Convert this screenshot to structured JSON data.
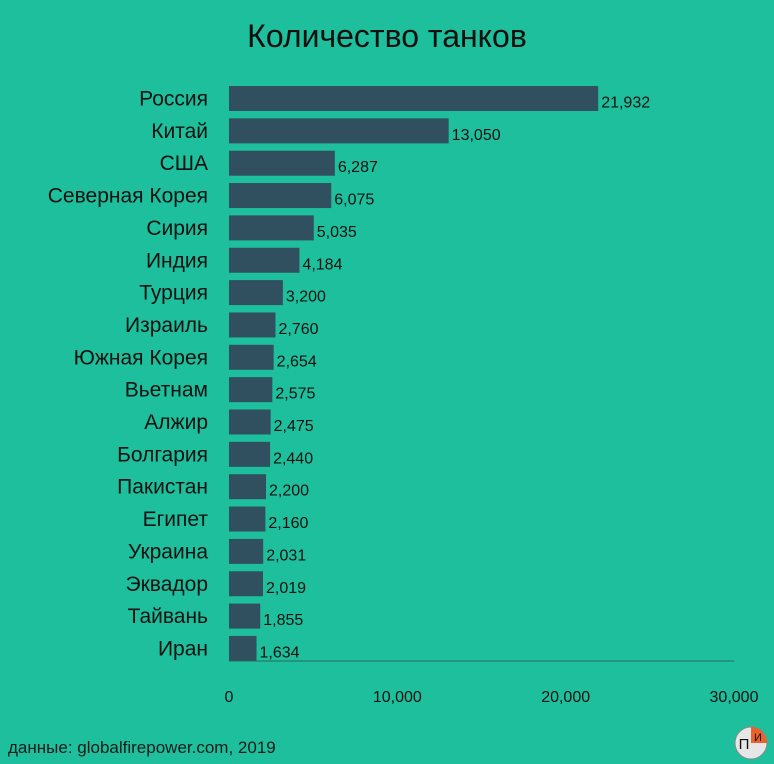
{
  "title": "Количество танков",
  "source": "данные: globalfirepower.com, 2019",
  "logo": {
    "text_left": "П",
    "text_right": "И"
  },
  "colors": {
    "background": "#1dbf9c",
    "bar": "#30505f",
    "text": "#111111",
    "logo_orange": "#e8622a"
  },
  "chart_data": {
    "type": "bar",
    "orientation": "horizontal",
    "title": "Количество танков",
    "categories": [
      "Россия",
      "Китай",
      "США",
      "Северная Корея",
      "Сирия",
      "Индия",
      "Турция",
      "Израиль",
      "Южная Корея",
      "Вьетнам",
      "Алжир",
      "Болгария",
      "Пакистан",
      "Египет",
      "Украина",
      "Эквадор",
      "Тайвань",
      "Иран"
    ],
    "values": [
      21932,
      13050,
      6287,
      6075,
      5035,
      4184,
      3200,
      2760,
      2654,
      2575,
      2475,
      2440,
      2200,
      2160,
      2031,
      2019,
      1855,
      1634
    ],
    "value_labels": [
      "21,932",
      "13,050",
      "6,287",
      "6,075",
      "5,035",
      "4,184",
      "3,200",
      "2,760",
      "2,654",
      "2,575",
      "2,475",
      "2,440",
      "2,200",
      "2,160",
      "2,031",
      "2,019",
      "1,855",
      "1,634"
    ],
    "xlim": [
      0,
      30000
    ],
    "xticks": [
      0,
      10000,
      20000,
      30000
    ],
    "xtick_labels": [
      "0",
      "10,000",
      "20,000",
      "30,000"
    ],
    "grid": false
  }
}
